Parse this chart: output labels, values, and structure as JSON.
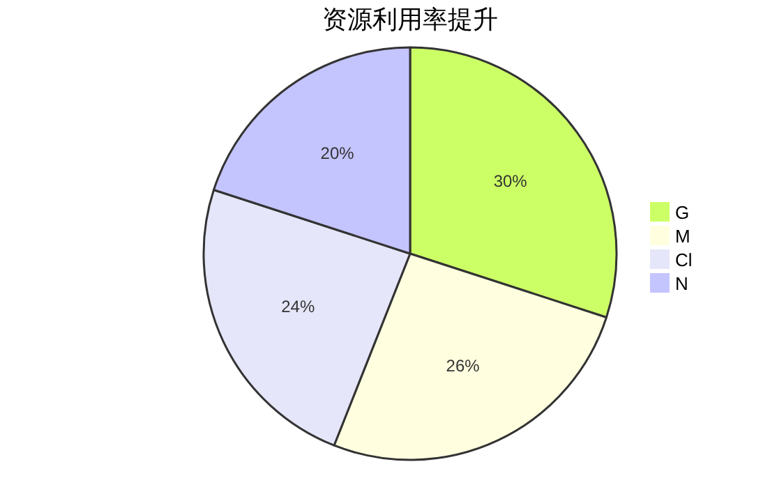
{
  "chart_data": {
    "type": "pie",
    "title": "资源利用率提升",
    "categories": [
      "G",
      "M",
      "Cl",
      "N"
    ],
    "values": [
      30,
      26,
      24,
      20
    ],
    "colors": [
      "#ccff66",
      "#ffffe0",
      "#e6e6fa",
      "#c4c4ff"
    ],
    "value_labels": [
      "30%",
      "26%",
      "24%",
      "20%"
    ],
    "legend": "right"
  }
}
